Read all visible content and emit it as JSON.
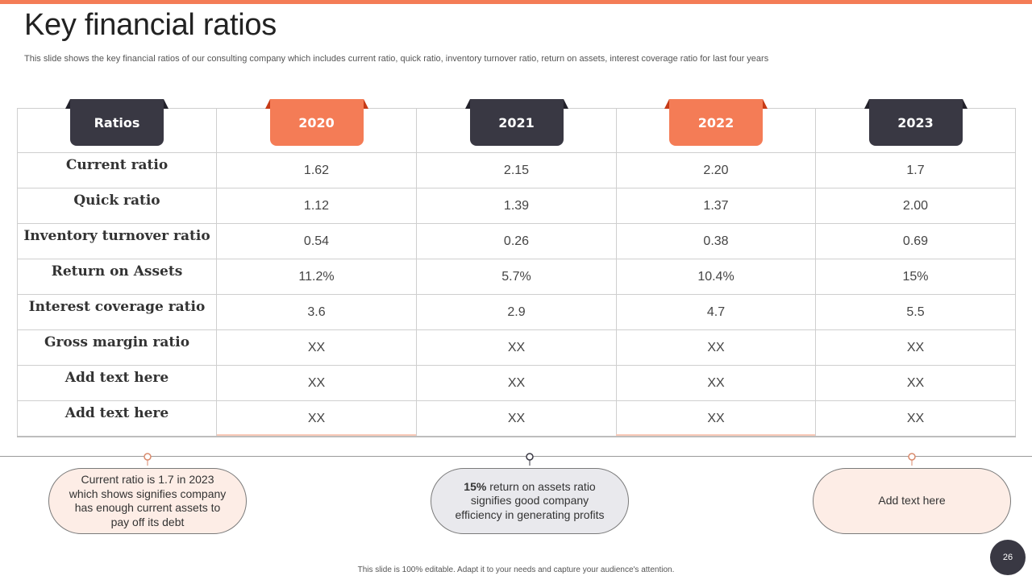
{
  "title": "Key financial ratios",
  "subtitle": "This slide shows the key financial ratios of our consulting company which includes current ratio, quick ratio, inventory turnover ratio, return on assets, interest coverage ratio for last four years",
  "table": {
    "headers": [
      "Ratios",
      "2020",
      "2021",
      "2022",
      "2023"
    ],
    "rows": [
      {
        "label": "Current ratio",
        "values": [
          "1.62",
          "2.15",
          "2.20",
          "1.7"
        ]
      },
      {
        "label": "Quick ratio",
        "values": [
          "1.12",
          "1.39",
          "1.37",
          "2.00"
        ]
      },
      {
        "label": "Inventory turnover ratio",
        "values": [
          "0.54",
          "0.26",
          "0.38",
          "0.69"
        ]
      },
      {
        "label": "Return on Assets",
        "values": [
          "11.2%",
          "5.7%",
          "10.4%",
          "15%"
        ]
      },
      {
        "label": "Interest coverage ratio",
        "values": [
          "3.6",
          "2.9",
          "4.7",
          "5.5"
        ]
      },
      {
        "label": "Gross margin ratio",
        "values": [
          "XX",
          "XX",
          "XX",
          "XX"
        ]
      },
      {
        "label": "Add text here",
        "values": [
          "XX",
          "XX",
          "XX",
          "XX"
        ]
      },
      {
        "label": "Add text here",
        "values": [
          "XX",
          "XX",
          "XX",
          "XX"
        ]
      }
    ]
  },
  "callouts": [
    {
      "text": "Current ratio is 1.7 in 2023 which shows signifies company has enough current assets to pay off its debt"
    },
    {
      "bold": "15%",
      "text": " return on assets ratio signifies good company efficiency in generating profits"
    },
    {
      "text": "Add text here"
    }
  ],
  "footer": "This slide is 100% editable. Adapt it to your needs and capture your audience's attention.",
  "page_number": "26",
  "colors": {
    "accent": "#f47c56",
    "dark": "#393843",
    "peach": "#fdede6",
    "grey": "#e9e9ed"
  }
}
